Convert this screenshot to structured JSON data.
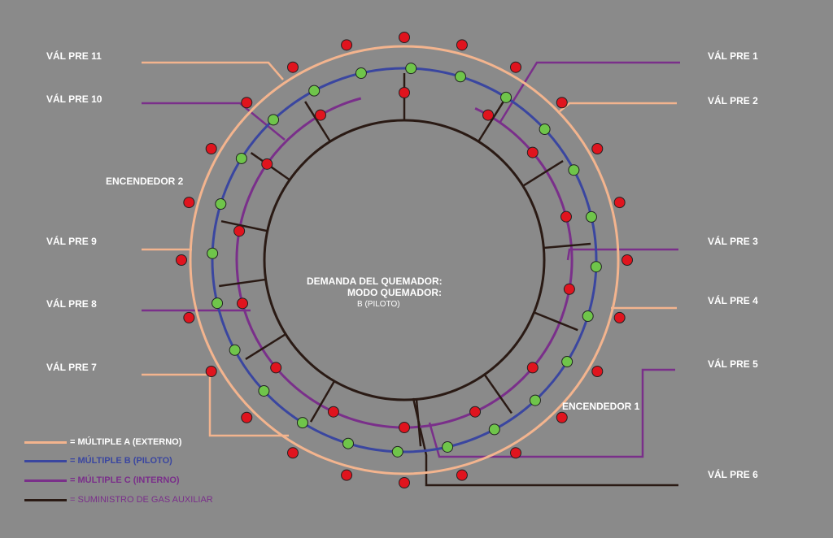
{
  "valves_left": [
    "VÁL PRE 11",
    "VÁL PRE 10",
    "VÁL PRE 9",
    "VÁL PRE 8",
    "VÁL PRE 7"
  ],
  "valves_right": [
    "VÁL PRE 1",
    "VÁL PRE 2",
    "VÁL PRE 3",
    "VÁL PRE 4",
    "VÁL PRE 5",
    "VÁL PRE 6"
  ],
  "igniters": [
    "ENCENDEDOR 2",
    "ENCENDEDOR 1"
  ],
  "center": {
    "line1": "DEMANDA DEL QUEMADOR:",
    "line2": "MODO QUEMADOR:",
    "mode_value": "B (PILOTO)"
  },
  "legend": [
    {
      "label": "= MÚLTIPLE A (EXTERNO)",
      "color": "#f3b48e",
      "text_color": "#ffffff"
    },
    {
      "label": "= MÚLTIPLE B (PILOTO)",
      "color": "#3a46a0",
      "text_color": "#3a46a0"
    },
    {
      "label": "= MÚLTIPLE C (INTERNO)",
      "color": "#7a2f8a",
      "text_color": "#7a2f8a"
    },
    {
      "label": "= SUMINISTRO DE GAS AUXILIAR",
      "color": "#2a1a14",
      "text_color": "#7a2f8a"
    }
  ],
  "colors": {
    "manifold_a": "#f3b48e",
    "manifold_b": "#3a46a0",
    "manifold_c": "#7a2f8a",
    "aux_gas": "#2a1a14",
    "node_red": "#e0141e",
    "node_green": "#6fc54a",
    "background": "#8a8a8a"
  }
}
